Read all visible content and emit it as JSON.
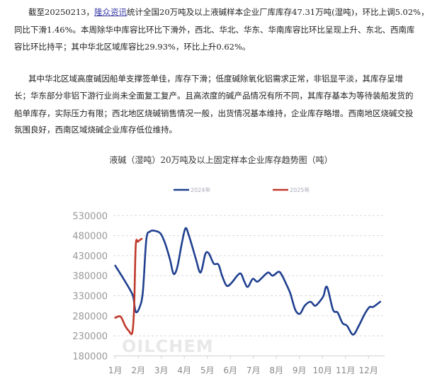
{
  "article": {
    "paragraph1": {
      "line1_prefix": "截至20250213，",
      "link": "隆众资讯",
      "line1_suffix": "统计全国20万吨及以上液碱样本企业厂库库存47.31万吨(湿吨)，环比上调5.02%，",
      "line2": "同比下滑1.46%。本周除华中库容比环比下滑外，西北、华北、华东、华南库容比环比呈现上升、东北、西南库",
      "line3": "容比环比持平；其中华北区域库容比29.93%，环比上升0.62%。"
    },
    "paragraph2": {
      "line1": "其中华北区域高度碱因船单支撑签单佳，库存下滑；低度碱除氧化铝需求正常，非铝显平淡，其库存呈增",
      "line2": "长；华东部分非铝下游行业尚未全面复工复产。且高浓度的碱产品情况有所不同，其库存基本为等待装船发货的",
      "line3": "船单库存，实际压力有限；西北地区烧碱销售情况一般，出货情况基本维持，企业库存略增。西南地区烧碱交投",
      "line4": "氛围良好，西南区域烧碱企业库存低位维持。"
    }
  },
  "chart_data": {
    "type": "line",
    "title": "液碱（湿吨）20万吨及以上固定样本企业库存趋势图（吨）",
    "xlabel": "",
    "ylabel": "",
    "ylim": [
      180000,
      530000
    ],
    "yticks": [
      "530000",
      "480000",
      "430000",
      "380000",
      "330000",
      "280000",
      "230000",
      "180000"
    ],
    "xticks": [
      "1月",
      "2月",
      "3月",
      "4月",
      "5月",
      "6月",
      "7月",
      "8月",
      "9月",
      "10月",
      "11月",
      "12月"
    ],
    "grid": true,
    "legend_position": "top",
    "watermark": "OILCHEM",
    "series": [
      {
        "name": "2024年",
        "color": "#1f3f8f",
        "x": [
          1.0,
          1.33,
          1.69,
          1.79,
          1.89,
          2.05,
          2.2,
          2.35,
          2.51,
          2.71,
          2.97,
          3.17,
          3.38,
          3.53,
          3.69,
          3.89,
          4.05,
          4.2,
          4.51,
          4.66,
          4.76,
          4.92,
          5.07,
          5.28,
          5.48,
          5.64,
          5.84,
          6.05,
          6.3,
          6.46,
          6.61,
          6.76,
          6.97,
          7.17,
          7.38,
          7.64,
          7.84,
          8.1,
          8.25,
          8.46,
          8.61,
          8.82,
          9.02,
          9.23,
          9.48,
          9.69,
          9.94,
          10.05,
          10.2,
          10.46,
          10.66,
          10.87,
          11.07,
          11.33,
          11.58,
          11.84,
          12.05,
          12.2,
          12.51
        ],
        "values": [
          405000,
          375000,
          340000,
          325000,
          290000,
          300000,
          340000,
          470000,
          490000,
          492000,
          485000,
          460000,
          420000,
          385000,
          400000,
          460000,
          498000,
          480000,
          420000,
          390000,
          395000,
          435000,
          435000,
          410000,
          408000,
          380000,
          355000,
          362000,
          380000,
          385000,
          365000,
          352000,
          372000,
          365000,
          375000,
          388000,
          380000,
          390000,
          380000,
          355000,
          335000,
          295000,
          285000,
          305000,
          315000,
          305000,
          320000,
          330000,
          352000,
          295000,
          288000,
          262000,
          255000,
          233000,
          255000,
          285000,
          302000,
          302000,
          315000
        ]
      },
      {
        "name": "2025年",
        "color": "#c0392b",
        "x": [
          1.0,
          1.23,
          1.43,
          1.58,
          1.74,
          1.82,
          1.89,
          1.99,
          2.15
        ],
        "values": [
          275000,
          278000,
          255000,
          243000,
          238000,
          300000,
          455000,
          465000,
          472000
        ]
      }
    ]
  }
}
